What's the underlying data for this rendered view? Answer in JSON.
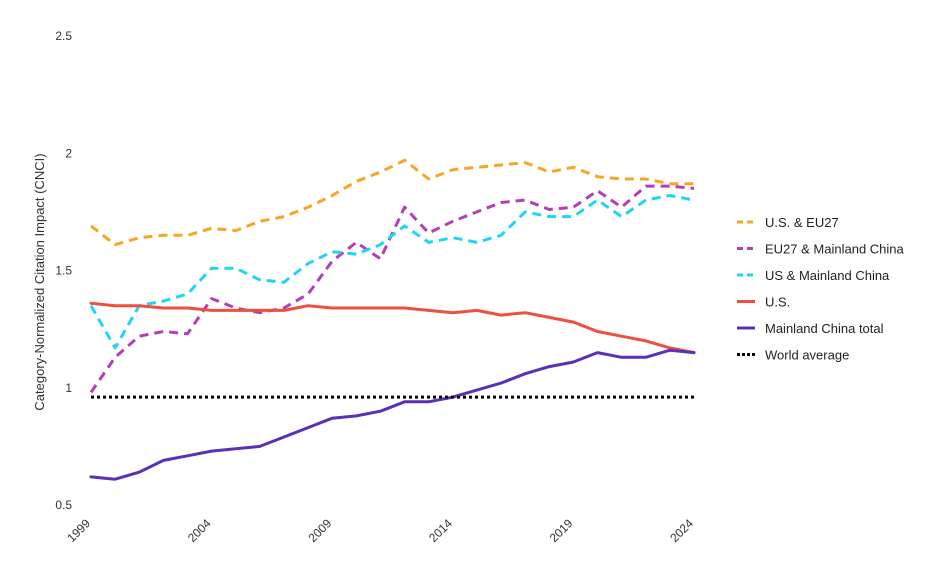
{
  "chart_data": {
    "type": "line",
    "title": "",
    "xlabel": "",
    "ylabel": "Category-Normalized Citation Impact (CNCI)",
    "x": [
      1999,
      2000,
      2001,
      2002,
      2003,
      2004,
      2005,
      2006,
      2007,
      2008,
      2009,
      2010,
      2011,
      2012,
      2013,
      2014,
      2015,
      2016,
      2017,
      2018,
      2019,
      2020,
      2021,
      2022,
      2023,
      2024
    ],
    "x_ticks": [
      1999,
      2004,
      2009,
      2014,
      2019,
      2024
    ],
    "x_tick_labels": [
      "1999",
      "2004",
      "2009",
      "2014",
      "2019",
      "2024"
    ],
    "xlim": [
      1999,
      2024
    ],
    "y_ticks": [
      0.5,
      1,
      1.5,
      2,
      2.5
    ],
    "y_tick_labels": [
      "0.5",
      "1",
      "1.5",
      "2",
      "2.5"
    ],
    "ylim": [
      0.5,
      2.5
    ],
    "grid": false,
    "legend_position": "right",
    "series": [
      {
        "name": "U.S. & EU27",
        "color": "#f5a623",
        "style": "dashed",
        "values": [
          1.69,
          1.61,
          1.64,
          1.65,
          1.65,
          1.68,
          1.67,
          1.71,
          1.73,
          1.77,
          1.82,
          1.88,
          1.92,
          1.97,
          1.89,
          1.93,
          1.94,
          1.95,
          1.96,
          1.92,
          1.94,
          1.9,
          1.89,
          1.89,
          1.87,
          1.87
        ]
      },
      {
        "name": "EU27 & Mainland China",
        "color": "#b33fb5",
        "style": "dashed",
        "values": [
          0.98,
          1.13,
          1.22,
          1.24,
          1.23,
          1.38,
          1.34,
          1.32,
          1.34,
          1.4,
          1.54,
          1.62,
          1.55,
          1.77,
          1.66,
          1.71,
          1.75,
          1.79,
          1.8,
          1.76,
          1.77,
          1.84,
          1.77,
          1.86,
          1.86,
          1.85
        ]
      },
      {
        "name": "US & Mainland China",
        "color": "#1ed6f0",
        "style": "dashed",
        "values": [
          1.35,
          1.17,
          1.35,
          1.37,
          1.4,
          1.51,
          1.51,
          1.46,
          1.45,
          1.53,
          1.58,
          1.57,
          1.61,
          1.69,
          1.62,
          1.64,
          1.62,
          1.65,
          1.75,
          1.73,
          1.73,
          1.8,
          1.73,
          1.8,
          1.82,
          1.8
        ]
      },
      {
        "name": "U.S.",
        "color": "#f04e3e",
        "style": "solid",
        "values": [
          1.36,
          1.35,
          1.35,
          1.34,
          1.34,
          1.33,
          1.33,
          1.33,
          1.33,
          1.35,
          1.34,
          1.34,
          1.34,
          1.34,
          1.33,
          1.32,
          1.33,
          1.31,
          1.32,
          1.3,
          1.28,
          1.24,
          1.22,
          1.2,
          1.17,
          1.15
        ]
      },
      {
        "name": "Mainland China total",
        "color": "#5b2fb8",
        "style": "solid",
        "values": [
          0.62,
          0.61,
          0.64,
          0.69,
          0.71,
          0.73,
          0.74,
          0.75,
          0.79,
          0.83,
          0.87,
          0.88,
          0.9,
          0.94,
          0.94,
          0.96,
          0.99,
          1.02,
          1.06,
          1.09,
          1.11,
          1.15,
          1.13,
          1.13,
          1.16,
          1.15
        ]
      },
      {
        "name": "World average",
        "color": "#000000",
        "style": "dotted",
        "values": [
          0.96,
          0.96,
          0.96,
          0.96,
          0.96,
          0.96,
          0.96,
          0.96,
          0.96,
          0.96,
          0.96,
          0.96,
          0.96,
          0.96,
          0.96,
          0.96,
          0.96,
          0.96,
          0.96,
          0.96,
          0.96,
          0.96,
          0.96,
          0.96,
          0.96,
          0.96
        ]
      }
    ]
  }
}
